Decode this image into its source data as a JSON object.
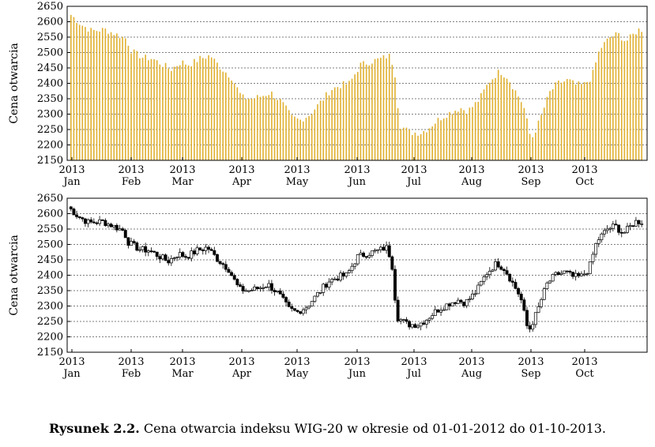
{
  "caption": {
    "prefix": "Rysunek 2.2.",
    "text": "Cena otwarcia indeksu WIG-20 w okresie od 01-01-2012 do 01-10-2013."
  },
  "colors": {
    "bar": "#e0b030",
    "candle": "#000000",
    "grid": "#000000"
  },
  "chart_data": [
    {
      "type": "bar",
      "ylabel": "Cena otwarcia",
      "ylim": [
        2150,
        2650
      ],
      "yticks": [
        2150,
        2200,
        2250,
        2300,
        2350,
        2400,
        2450,
        2500,
        2550,
        2600,
        2650
      ],
      "xticks": [
        {
          "year": "2013",
          "month": "Jan"
        },
        {
          "year": "2013",
          "month": "Feb"
        },
        {
          "year": "2013",
          "month": "Mar"
        },
        {
          "year": "2013",
          "month": "Apr"
        },
        {
          "year": "2013",
          "month": "May"
        },
        {
          "year": "2013",
          "month": "Jun"
        },
        {
          "year": "2013",
          "month": "Jul"
        },
        {
          "year": "2013",
          "month": "Aug"
        },
        {
          "year": "2013",
          "month": "Sep"
        },
        {
          "year": "2013",
          "month": "Oct"
        }
      ],
      "grid": true,
      "n_sessions": 200,
      "anchors": [
        [
          0,
          2622
        ],
        [
          4,
          2590
        ],
        [
          8,
          2570
        ],
        [
          13,
          2575
        ],
        [
          17,
          2560
        ],
        [
          21,
          2545
        ],
        [
          23,
          2505
        ],
        [
          27,
          2485
        ],
        [
          31,
          2480
        ],
        [
          35,
          2460
        ],
        [
          38,
          2445
        ],
        [
          42,
          2470
        ],
        [
          45,
          2460
        ],
        [
          49,
          2480
        ],
        [
          53,
          2490
        ],
        [
          57,
          2450
        ],
        [
          61,
          2420
        ],
        [
          65,
          2355
        ],
        [
          69,
          2350
        ],
        [
          73,
          2360
        ],
        [
          76,
          2370
        ],
        [
          80,
          2340
        ],
        [
          84,
          2290
        ],
        [
          87,
          2280
        ],
        [
          91,
          2300
        ],
        [
          95,
          2340
        ],
        [
          99,
          2380
        ],
        [
          103,
          2395
        ],
        [
          106,
          2400
        ],
        [
          110,
          2460
        ],
        [
          114,
          2470
        ],
        [
          118,
          2480
        ],
        [
          121,
          2490
        ],
        [
          123,
          2450
        ],
        [
          125,
          2265
        ],
        [
          129,
          2240
        ],
        [
          133,
          2240
        ],
        [
          136,
          2255
        ],
        [
          140,
          2285
        ],
        [
          144,
          2305
        ],
        [
          148,
          2320
        ],
        [
          151,
          2310
        ],
        [
          155,
          2345
        ],
        [
          159,
          2405
        ],
        [
          163,
          2440
        ],
        [
          166,
          2420
        ],
        [
          170,
          2360
        ],
        [
          172,
          2330
        ],
        [
          175,
          2215
        ],
        [
          178,
          2275
        ],
        [
          182,
          2370
        ],
        [
          185,
          2400
        ],
        [
          189,
          2410
        ],
        [
          192,
          2395
        ],
        [
          195,
          2395
        ],
        [
          198,
          2420
        ],
        [
          201,
          2510
        ],
        [
          205,
          2550
        ],
        [
          208,
          2560
        ],
        [
          211,
          2535
        ],
        [
          214,
          2560
        ],
        [
          216,
          2575
        ]
      ]
    },
    {
      "type": "candlestick",
      "ylabel": "Cena otwarcia",
      "ylim": [
        2150,
        2650
      ],
      "yticks": [
        2150,
        2200,
        2250,
        2300,
        2350,
        2400,
        2450,
        2500,
        2550,
        2600,
        2650
      ],
      "xticks": [
        {
          "year": "2013",
          "month": "Jan"
        },
        {
          "year": "2013",
          "month": "Feb"
        },
        {
          "year": "2013",
          "month": "Mar"
        },
        {
          "year": "2013",
          "month": "Apr"
        },
        {
          "year": "2013",
          "month": "May"
        },
        {
          "year": "2013",
          "month": "Jun"
        },
        {
          "year": "2013",
          "month": "Jul"
        },
        {
          "year": "2013",
          "month": "Aug"
        },
        {
          "year": "2013",
          "month": "Sep"
        },
        {
          "year": "2013",
          "month": "Oct"
        }
      ],
      "grid": true
    }
  ]
}
